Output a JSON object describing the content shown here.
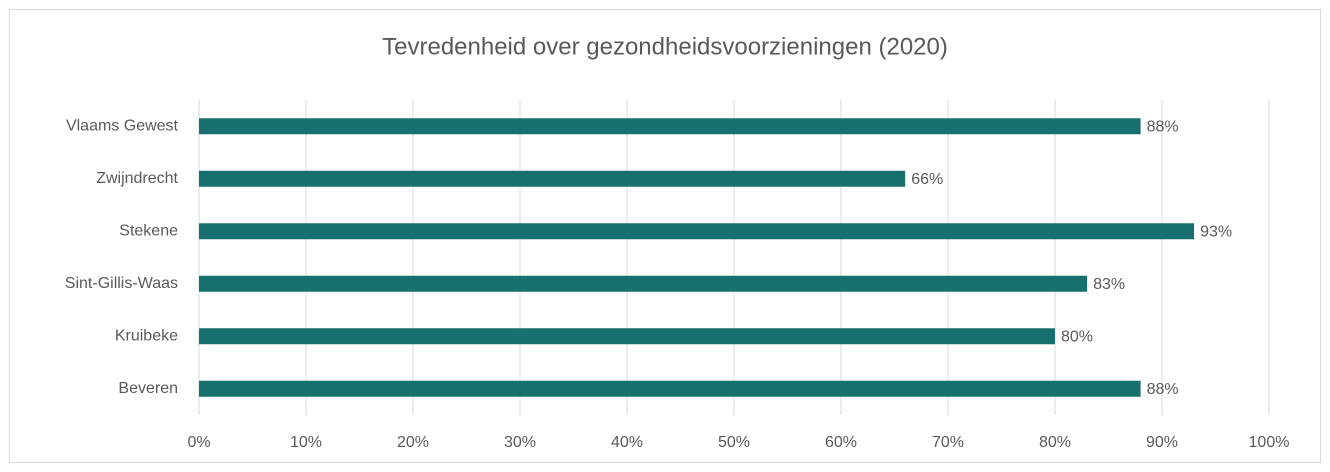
{
  "chart_data": {
    "type": "hbar",
    "title": "Tevredenheid over gezondheidsvoorzieningen (2020)",
    "categories": [
      "Vlaams Gewest",
      "Zwijndrecht",
      "Stekene",
      "Sint-Gillis-Waas",
      "Kruibeke",
      "Beveren"
    ],
    "values": [
      88,
      66,
      93,
      83,
      80,
      88
    ],
    "value_labels": [
      "88%",
      "66%",
      "93%",
      "83%",
      "80%",
      "88%"
    ],
    "color": "#17706f",
    "xlim": [
      0,
      100
    ],
    "xticks": [
      {
        "value": 0,
        "label": "0%"
      },
      {
        "value": 10,
        "label": "10%"
      },
      {
        "value": 20,
        "label": "20%"
      },
      {
        "value": 30,
        "label": "30%"
      },
      {
        "value": 40,
        "label": "40%"
      },
      {
        "value": 50,
        "label": "50%"
      },
      {
        "value": 60,
        "label": "60%"
      },
      {
        "value": 70,
        "label": "70%"
      },
      {
        "value": 80,
        "label": "80%"
      },
      {
        "value": 90,
        "label": "90%"
      },
      {
        "value": 100,
        "label": "100%"
      }
    ],
    "grid": true
  }
}
